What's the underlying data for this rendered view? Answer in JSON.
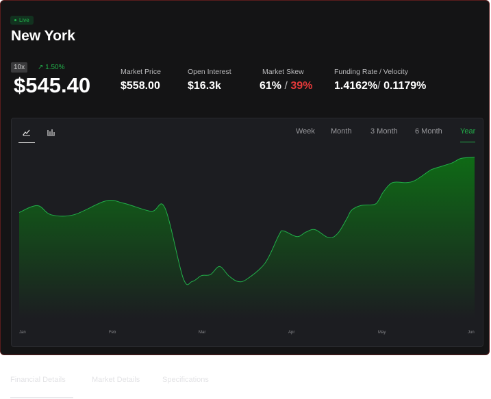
{
  "header": {
    "live_label": "Live",
    "title": "New York",
    "leverage": "10x",
    "change": "↗ 1.50%",
    "price": "$545.40"
  },
  "stats": [
    {
      "label": "Market Price",
      "value": "$558.00"
    },
    {
      "label": "Open Interest",
      "value": "$16.3k"
    },
    {
      "label": "Market Skew",
      "value_long": "61%",
      "separator": "/",
      "value_short": "39%"
    },
    {
      "label": "Funding Rate / Velocity",
      "value_rate": "1.4162%",
      "separator": "/",
      "value_velocity": "0.1179%"
    }
  ],
  "chart_controls": {
    "chart_types": [
      "line-chart-icon",
      "bar-chart-icon"
    ],
    "ranges": [
      "Week",
      "Month",
      "3 Month",
      "6 Month",
      "Year"
    ],
    "active_range": "Year"
  },
  "colors": {
    "accent_green": "#22b04a",
    "negative_red": "#e53a3a",
    "background": "#141415",
    "panel": "#1c1d21"
  },
  "bottom_tabs": [
    "Financial Details",
    "Market Details",
    "Specifications"
  ],
  "chart_data": {
    "type": "area",
    "x_ticks": [
      "Jan",
      "Feb",
      "Mar",
      "Apr",
      "May",
      "Jun"
    ],
    "x": [
      0,
      0.04,
      0.07,
      0.12,
      0.19,
      0.23,
      0.29,
      0.32,
      0.36,
      0.38,
      0.4,
      0.42,
      0.44,
      0.46,
      0.48,
      0.5,
      0.54,
      0.57,
      0.58,
      0.61,
      0.63,
      0.65,
      0.68,
      0.7,
      0.72,
      0.73,
      0.75,
      0.78,
      0.79,
      0.8,
      0.82,
      0.85,
      0.87,
      0.9,
      0.91,
      0.95,
      0.97,
      1.0
    ],
    "values": [
      152,
      158,
      150,
      150,
      162,
      160,
      153,
      156,
      95,
      92,
      97,
      98,
      105,
      97,
      92,
      94,
      108,
      132,
      136,
      131,
      135,
      137,
      130,
      134,
      147,
      154,
      158,
      159,
      163,
      170,
      178,
      178,
      180,
      188,
      190,
      195,
      199,
      200
    ],
    "ylim": [
      60,
      210
    ],
    "grid": false,
    "legend": "none"
  }
}
